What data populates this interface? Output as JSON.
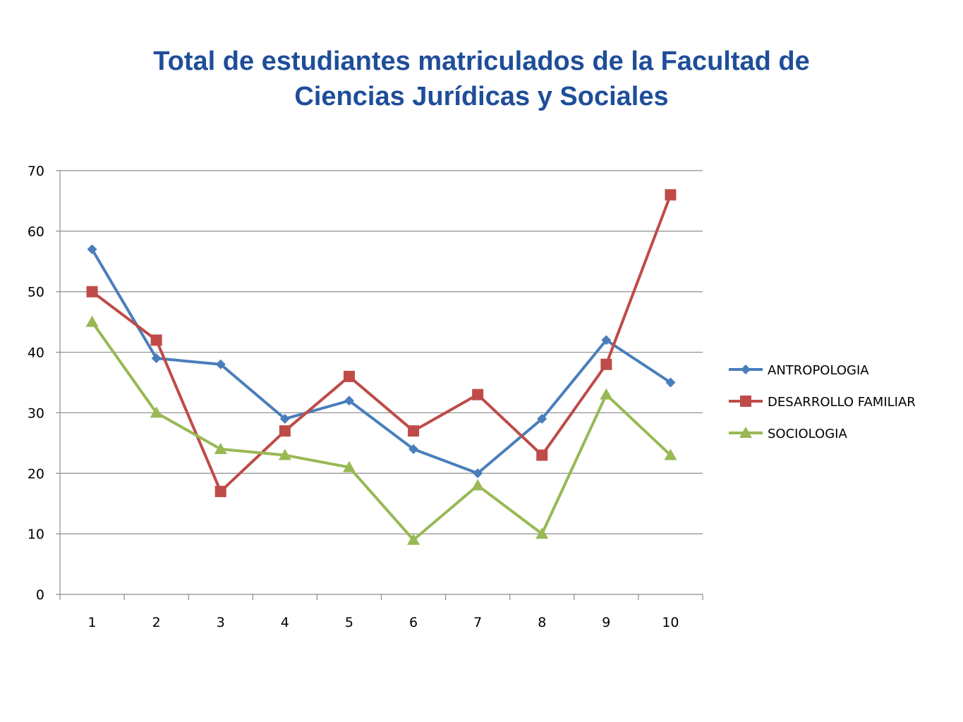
{
  "title": {
    "line1": "Total de estudiantes matriculados de la Facultad de",
    "line2": "Ciencias Jurídicas y Sociales"
  },
  "chart_data": {
    "type": "line",
    "title": "Total de estudiantes matriculados de la Facultad de Ciencias Jurídicas y Sociales",
    "xlabel": "",
    "ylabel": "",
    "categories": [
      "1",
      "2",
      "3",
      "4",
      "5",
      "6",
      "7",
      "8",
      "9",
      "10"
    ],
    "ylim": [
      0,
      70
    ],
    "yticks": [
      0,
      10,
      20,
      30,
      40,
      50,
      60,
      70
    ],
    "grid": true,
    "legend_position": "right",
    "series": [
      {
        "name": "ANTROPOLOGIA",
        "color": "#4a7ebb",
        "marker": "diamond",
        "values": [
          57,
          39,
          38,
          29,
          32,
          24,
          20,
          29,
          42,
          35
        ]
      },
      {
        "name": "DESARROLLO FAMILIAR",
        "color": "#be4b48",
        "marker": "square",
        "values": [
          50,
          42,
          17,
          27,
          36,
          27,
          33,
          23,
          38,
          66
        ]
      },
      {
        "name": "SOCIOLOGIA",
        "color": "#98b954",
        "marker": "triangle",
        "values": [
          45,
          30,
          24,
          23,
          21,
          9,
          18,
          10,
          33,
          23
        ]
      }
    ]
  }
}
